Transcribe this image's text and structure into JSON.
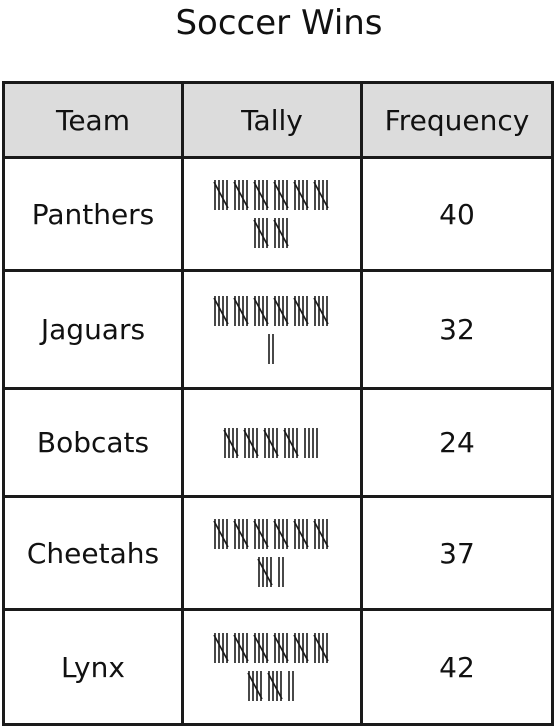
{
  "title": "Soccer Wins",
  "chart_data": {
    "type": "table",
    "title": "Soccer Wins",
    "columns": [
      "Team",
      "Tally",
      "Frequency"
    ],
    "rows": [
      {
        "team": "Panthers",
        "tally": 40,
        "frequency": "40"
      },
      {
        "team": "Jaguars",
        "tally": 32,
        "frequency": "32"
      },
      {
        "team": "Bobcats",
        "tally": 24,
        "frequency": "24"
      },
      {
        "team": "Cheetahs",
        "tally": 37,
        "frequency": "37"
      },
      {
        "team": "Lynx",
        "tally": 42,
        "frequency": "42"
      }
    ],
    "header_background": "#dcdcdc",
    "border_color": "#1a1a1a"
  }
}
